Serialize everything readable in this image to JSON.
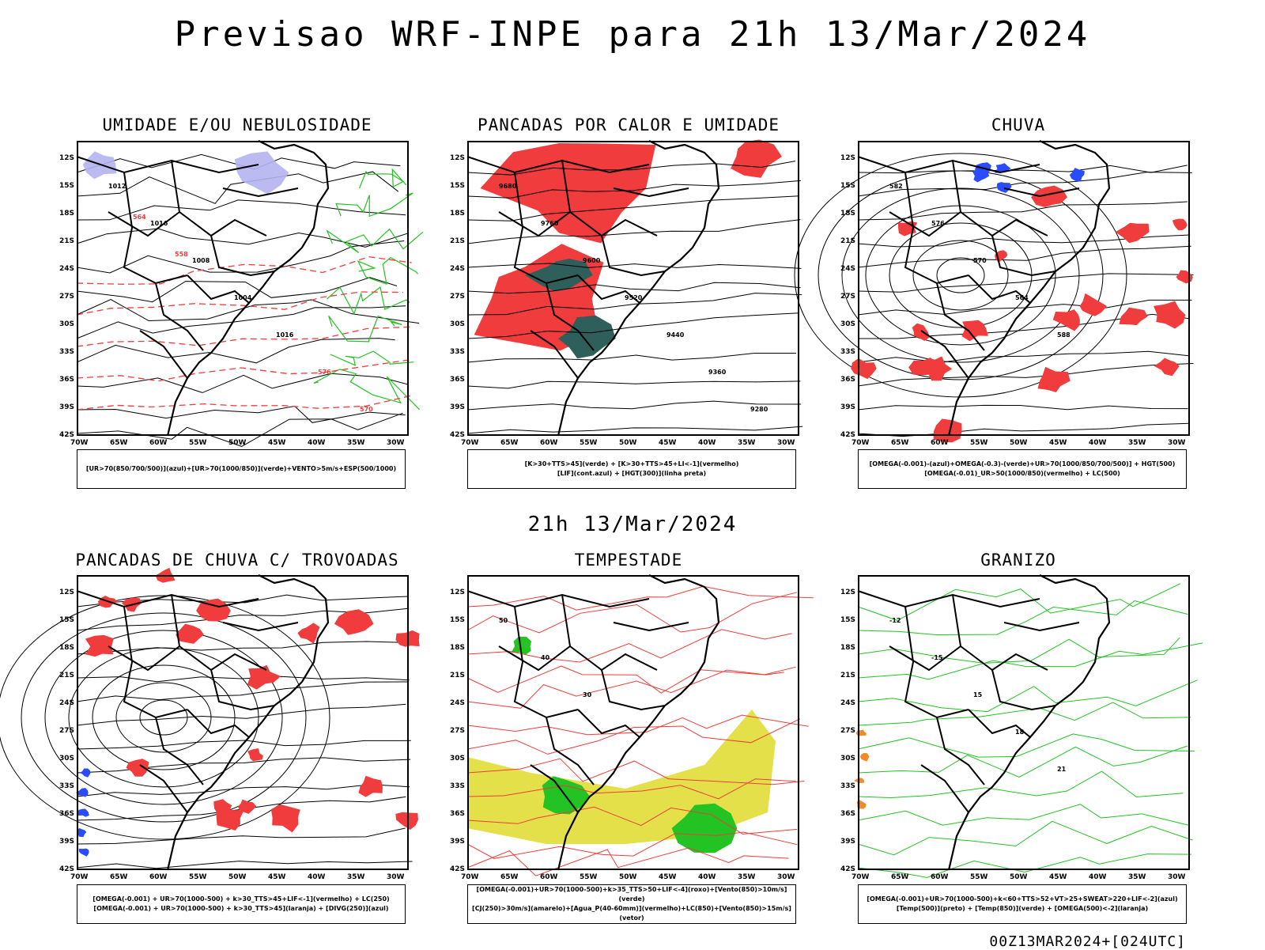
{
  "header": {
    "title": "Previsao WRF-INPE  para 21h 13/Mar/2024",
    "subtitle": "21h 13/Mar/2024",
    "run_id": "00Z13MAR2024+[024UTC]"
  },
  "axes": {
    "lat_labels": [
      "12S",
      "15S",
      "18S",
      "21S",
      "24S",
      "27S",
      "30S",
      "33S",
      "36S",
      "39S",
      "42S"
    ],
    "lon_labels": [
      "70W",
      "65W",
      "60W",
      "55W",
      "50W",
      "45W",
      "40W",
      "35W",
      "30W"
    ]
  },
  "colors": {
    "red": "#f03c3c",
    "green": "#22c322",
    "blue": "#2a4cff",
    "lavender": "#b4b4f0",
    "teal": "#2f5f5a",
    "yellow": "#e3e049",
    "orange": "#f08c28",
    "purple": "#a020f0"
  },
  "panels": [
    {
      "id": "umidade",
      "title": "UMIDADE E/OU NEBULOSIDADE",
      "legend": [
        "[UR>70(850/700/500)](azul)+[UR>70(1000/850)](verde)+VENTO>5m/s+ESP(500/1000)"
      ],
      "contour_labels": [
        "1012",
        "1016",
        "1008",
        "1004",
        "1016",
        "576",
        "570",
        "564",
        "558"
      ]
    },
    {
      "id": "pancadas-calor",
      "title": "PANCADAS POR CALOR E UMIDADE",
      "legend": [
        "[K>30+TTS>45](verde) + [K>30+TTS>45+LI<-1](vermelho)",
        "[LIF](cont.azul) + [HGT(300)](linha preta)"
      ],
      "contour_labels": [
        "9680",
        "9760",
        "9600",
        "9520",
        "9440",
        "9360",
        "9280"
      ]
    },
    {
      "id": "chuva",
      "title": "CHUVA",
      "legend": [
        "[OMEGA(-0.001)-(azul)+OMEGA(-0.3)-(verde)+UR>70(1000/850/700/500)] + HGT(500)",
        "[OMEGA(-0.01)_UR>50(1000/850)(vermelho) + LC(500)"
      ],
      "contour_labels": [
        "582",
        "576",
        "570",
        "564",
        "588"
      ]
    },
    {
      "id": "trovoadas",
      "title": "PANCADAS DE CHUVA C/ TROVOADAS",
      "legend": [
        "[OMEGA(-0.001) + UR>70(1000-500) + k>30_TTS>45+LIF<-1](vermelho) + LC(250)",
        "[OMEGA(-0.001) + UR>70(1000-500) + k>30_TTS>45](laranja) + [DIVG(250)](azul)"
      ],
      "contour_labels": []
    },
    {
      "id": "tempestade",
      "title": "TEMPESTADE",
      "legend": [
        "[OMEGA(-0.001)+UR>70(1000-500)+k>35_TTS>50+LIF<-4](roxo)+[Vento(850)>10m/s](verde)",
        "[CJ(250)>30m/s](amarelo)+[Agua_P(40-60mm)](vermelho)+LC(850)+[Vento(850)>15m/s](vetor)"
      ],
      "contour_labels": [
        "50",
        "40",
        "30"
      ]
    },
    {
      "id": "granizo",
      "title": "GRANIZO",
      "legend": [
        "[OMEGA(-0.001)+UR>70(1000-500)+k<60+TTS>52+VT>25+SWEAT>220+LIF<-2](azul)",
        "[Temp(500)](preto) + [Temp(850)](verde) + [OMEGA(500)<-2](laranja)"
      ],
      "contour_labels": [
        "-12",
        "-15",
        "15",
        "18",
        "21"
      ]
    }
  ]
}
